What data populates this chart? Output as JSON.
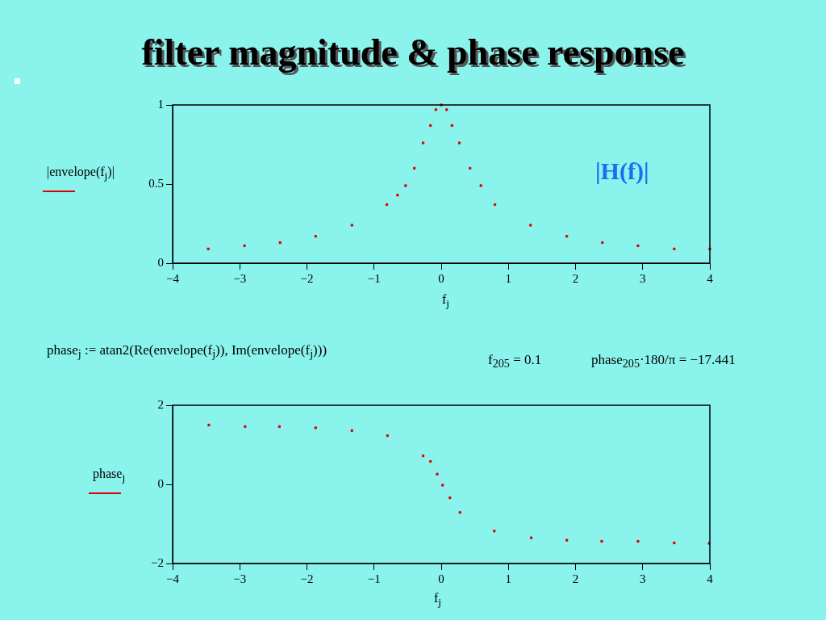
{
  "chart_data": [
    {
      "type": "scatter",
      "title": "filter magnitude & phase response",
      "xlabel": "f$_{j}$",
      "ylabel": "|envelope(f$_{j}$)|",
      "annotations": [
        "|H(f)|"
      ],
      "marker": "square",
      "grid": false,
      "legend": false,
      "xlim": [
        -4,
        4
      ],
      "xticks": [
        -4,
        -3,
        -2,
        -1,
        0,
        1,
        2,
        3,
        4
      ],
      "ylim": [
        0,
        1
      ],
      "yticks": [
        0,
        0.5,
        1
      ],
      "series": [
        {
          "color": "#e00000",
          "x": [
            -3.47,
            -2.93,
            -2.4,
            -1.87,
            -1.33,
            -0.81,
            -0.65,
            -0.53,
            -0.4,
            -0.27,
            -0.16,
            -0.08,
            0,
            0.08,
            0.16,
            0.27,
            0.43,
            0.59,
            0.8,
            1.33,
            1.87,
            2.4,
            2.93,
            3.47,
            4
          ],
          "values": [
            0.09,
            0.11,
            0.13,
            0.17,
            0.24,
            0.37,
            0.43,
            0.49,
            0.6,
            0.76,
            0.87,
            0.97,
            1,
            0.97,
            0.87,
            0.76,
            0.6,
            0.49,
            0.37,
            0.24,
            0.17,
            0.13,
            0.11,
            0.09,
            0.09
          ]
        }
      ]
    },
    {
      "type": "scatter",
      "xlabel": "f$_{j}$",
      "ylabel": "phase$_{j}$",
      "annotations": [
        "phase$_{j}$ := atan2(Re(envelope(f$_{j}$)), Im(envelope(f$_{j}$)))",
        "f$_{205}$ = 0.1",
        "phase$_{205}$·180/π = −17.441"
      ],
      "marker": "square",
      "grid": false,
      "legend": false,
      "xlim": [
        -4,
        4
      ],
      "xticks": [
        -4,
        -3,
        -2,
        -1,
        0,
        1,
        2,
        3,
        4
      ],
      "ylim": [
        -2,
        2
      ],
      "yticks": [
        -2,
        0,
        2
      ],
      "series": [
        {
          "color": "#e00000",
          "x": [
            -3.46,
            -2.92,
            -2.41,
            -1.87,
            -1.33,
            -0.8,
            -0.27,
            -0.16,
            -0.06,
            0.02,
            0.13,
            0.28,
            0.79,
            1.34,
            1.87,
            2.39,
            2.93,
            3.47,
            3.99
          ],
          "values": [
            1.5,
            1.46,
            1.46,
            1.43,
            1.36,
            1.23,
            0.72,
            0.58,
            0.26,
            -0.02,
            -0.34,
            -0.71,
            -1.18,
            -1.35,
            -1.41,
            -1.44,
            -1.44,
            -1.48,
            -1.49
          ]
        }
      ]
    }
  ]
}
